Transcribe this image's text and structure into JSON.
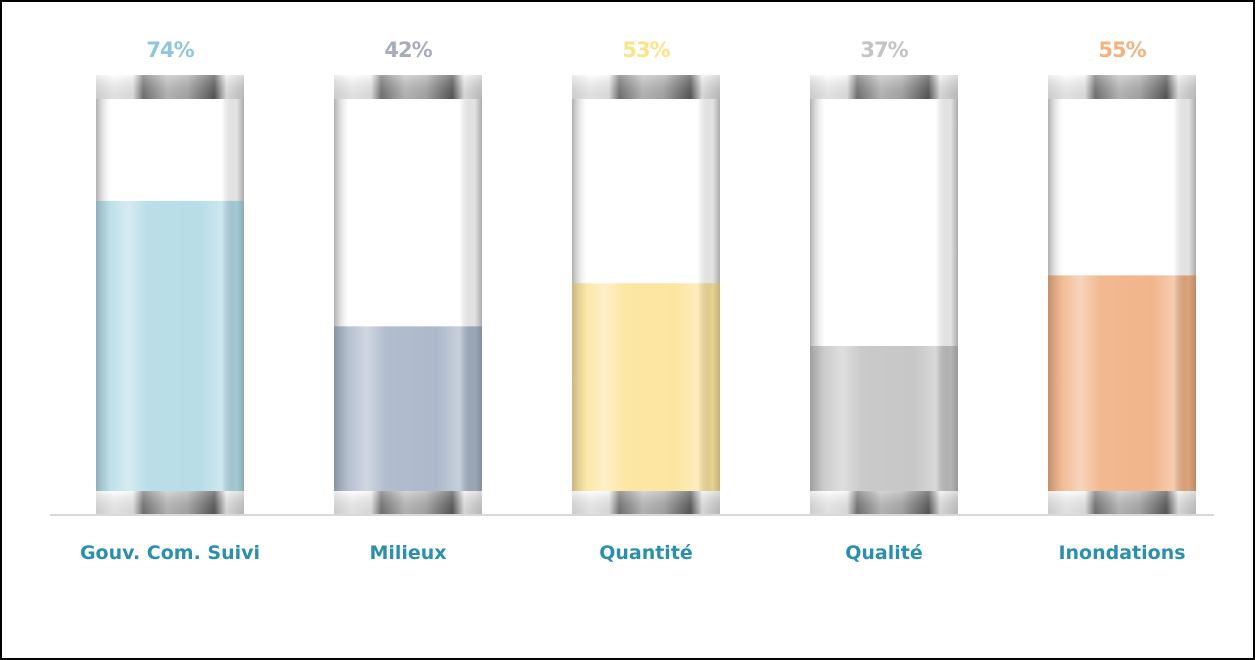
{
  "chart_data": {
    "type": "bar",
    "title": "",
    "xlabel": "",
    "ylabel": "",
    "ylim": [
      0,
      100
    ],
    "categories": [
      "Gouv. Com. Suivi",
      "Milieux",
      "Quantité",
      "Qualité",
      "Inondations"
    ],
    "values": [
      74,
      42,
      53,
      37,
      55
    ],
    "value_labels": [
      "74%",
      "42%",
      "53%",
      "37%",
      "55%"
    ],
    "colors": [
      "#b3dbe6",
      "#a9b6c8",
      "#fce49b",
      "#c4c4c4",
      "#f1b185"
    ],
    "label_colors": [
      "#8fc5de",
      "#a6aebd",
      "#fbe38a",
      "#c4c4c4",
      "#f3b37f"
    ],
    "category_label_color": "#2c8fae",
    "baseline_color": "#d9d9d9",
    "legend": "none",
    "grid": false
  }
}
